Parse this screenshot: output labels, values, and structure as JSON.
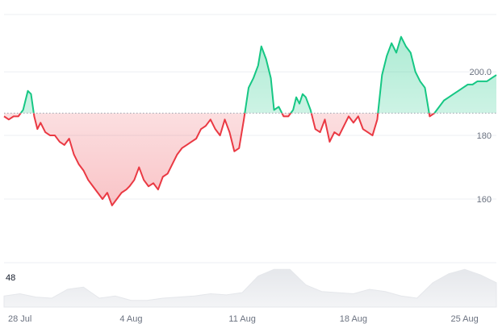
{
  "chart_data": {
    "type": "area",
    "baseline": 187,
    "ylim": [
      140,
      218
    ],
    "y_ticks": [
      {
        "value": 200,
        "label": "200.0"
      },
      {
        "value": 180,
        "label": "180"
      },
      {
        "value": 160,
        "label": "160"
      }
    ],
    "x_range": [
      0,
      31
    ],
    "x_ticks": [
      {
        "value": 1,
        "label": "28 Jul"
      },
      {
        "value": 8,
        "label": "4 Aug"
      },
      {
        "value": 15,
        "label": "11 Aug"
      },
      {
        "value": 22,
        "label": "18 Aug"
      },
      {
        "value": 29,
        "label": "25 Aug"
      }
    ],
    "grid": true,
    "series": [
      {
        "x": [
          0,
          0.3,
          0.6,
          0.9,
          1.2,
          1.5,
          1.7,
          1.9,
          2.1,
          2.3,
          2.6,
          2.9,
          3.2,
          3.5,
          3.8,
          4.1,
          4.4,
          4.7,
          5.0,
          5.3,
          5.6,
          5.9,
          6.2,
          6.5,
          6.8,
          7.1,
          7.4,
          7.7,
          7.9,
          8.2,
          8.5,
          8.8,
          9.1,
          9.4,
          9.7,
          10.0,
          10.3,
          10.6,
          10.9,
          11.2,
          11.5,
          11.8,
          12.1,
          12.4,
          12.7,
          13.0,
          13.3,
          13.6,
          13.9,
          14.2,
          14.5,
          14.8,
          15.1,
          15.4,
          15.7,
          16.0,
          16.2,
          16.5,
          16.8,
          17.0,
          17.3,
          17.6,
          17.9,
          18.2,
          18.4,
          18.6,
          18.8,
          19.0,
          19.3,
          19.6,
          19.9,
          20.2,
          20.5,
          20.8,
          21.1,
          21.4,
          21.7,
          22.0,
          22.3,
          22.6,
          22.9,
          23.2,
          23.5,
          23.8,
          24.1,
          24.4,
          24.7,
          25.0,
          25.3,
          25.6,
          25.9,
          26.2,
          26.5,
          26.8,
          27.1,
          27.4,
          27.7,
          28.0,
          28.3,
          28.6,
          28.9,
          29.2,
          29.5,
          29.8,
          30.1,
          30.4,
          30.7,
          31.0
        ],
        "y": [
          186,
          185,
          186,
          186,
          188,
          194,
          193,
          186,
          182,
          184,
          181,
          180,
          180,
          178,
          177,
          179,
          174,
          171,
          169,
          166,
          164,
          162,
          160,
          162,
          158,
          160,
          162,
          163,
          164,
          166,
          170,
          166,
          164,
          165,
          163,
          167,
          168,
          171,
          174,
          176,
          177,
          178,
          179,
          182,
          183,
          185,
          182,
          180,
          185,
          181,
          175,
          176,
          185,
          195,
          198,
          202,
          208,
          204,
          198,
          188,
          189,
          186,
          186,
          188,
          192,
          190,
          193,
          192,
          188,
          182,
          181,
          185,
          178,
          181,
          180,
          183,
          186,
          184,
          186,
          182,
          181,
          180,
          185,
          199,
          205,
          209,
          206,
          211,
          208,
          206,
          200,
          197,
          195,
          186,
          187,
          189,
          191,
          192,
          193,
          194,
          195,
          196,
          196,
          197,
          197,
          197,
          198,
          199
        ],
        "color_up": "#16c784",
        "color_down": "#ea3943"
      }
    ],
    "volume": {
      "label": "48",
      "x": [
        0,
        1,
        2,
        3,
        4,
        5,
        6,
        7,
        8,
        9,
        10,
        11,
        12,
        13,
        14,
        15,
        16,
        17,
        18,
        19,
        20,
        21,
        22,
        23,
        24,
        25,
        26,
        27,
        28,
        29,
        30,
        31
      ],
      "values": [
        10,
        12,
        9,
        8,
        16,
        18,
        8,
        10,
        6,
        6,
        8,
        9,
        10,
        12,
        11,
        13,
        28,
        34,
        34,
        20,
        14,
        13,
        12,
        16,
        14,
        10,
        8,
        22,
        30,
        34,
        29,
        22
      ]
    }
  }
}
